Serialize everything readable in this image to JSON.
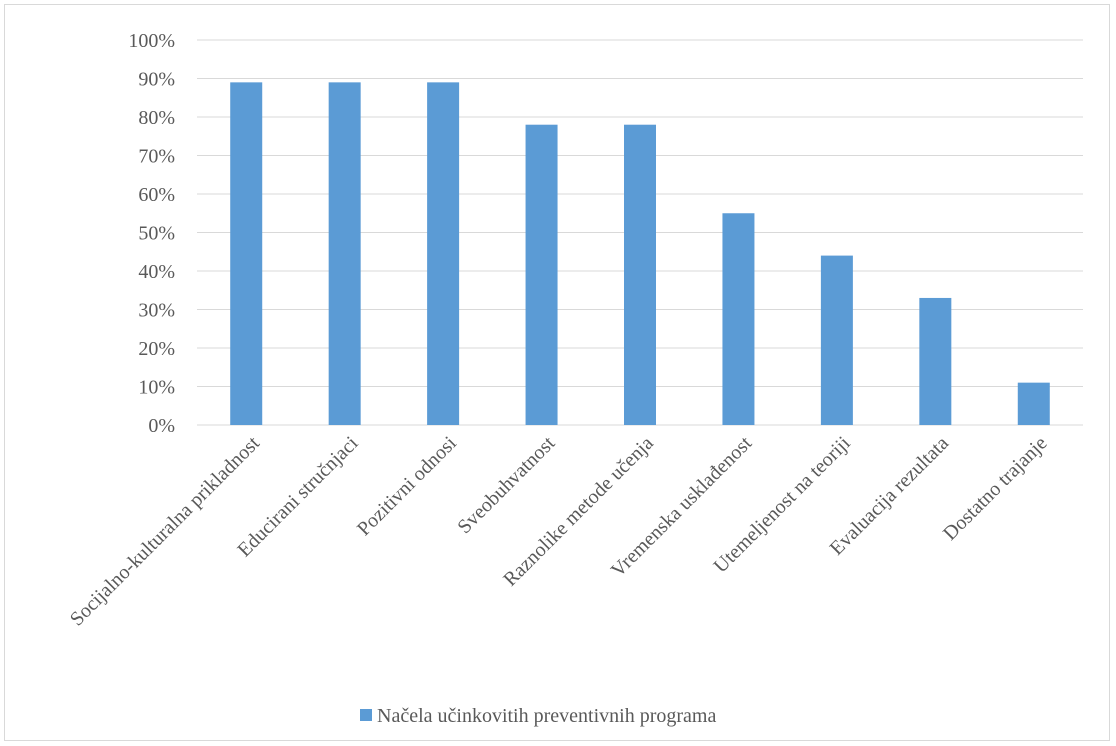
{
  "chart_data": {
    "type": "bar",
    "categories": [
      "Socijalno-kulturalna prikladnost",
      "Educirani stručnjaci",
      "Pozitivni odnosi",
      "Sveobuhvatnost",
      "Raznolike metode učenja",
      "Vremenska usklađenost",
      "Utemeljenost na teoriji",
      "Evaluacija rezultata",
      "Dostatno trajanje"
    ],
    "series": [
      {
        "name": "Načela učinkovitih preventivnih programa",
        "values": [
          89,
          89,
          89,
          78,
          78,
          55,
          44,
          33,
          11
        ]
      }
    ],
    "y_ticks": [
      "0%",
      "10%",
      "20%",
      "30%",
      "40%",
      "50%",
      "60%",
      "70%",
      "80%",
      "90%",
      "100%"
    ],
    "ylim": [
      0,
      100
    ],
    "y_unit": "%",
    "grid": true,
    "legend_position": "bottom",
    "colors": {
      "bar": "#5b9bd5",
      "grid": "#d9d9d9",
      "text": "#595959"
    }
  }
}
